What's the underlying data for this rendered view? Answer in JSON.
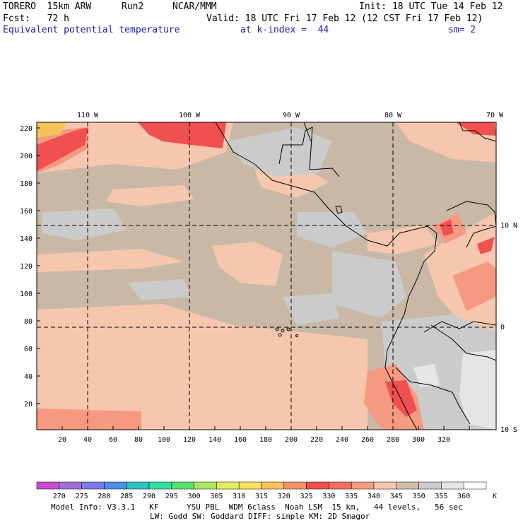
{
  "header": {
    "model": "TORERO  15km ARW",
    "run": "Run2",
    "center": "NCAR/MMM",
    "init": "Init: 18 UTC Tue 14 Feb 12",
    "fcst": "Fcst:   72 h",
    "valid": "Valid: 18 UTC Fri 17 Feb 12 (12 CST Fri 17 Feb 12)",
    "field": "Equivalent potential temperature",
    "level": "at k-index =  44",
    "smoothing": "sm= 2"
  },
  "map": {
    "lon_labels": [
      "110 W",
      "100 W",
      "90 W",
      "80 W",
      "70 W"
    ],
    "lat_labels": [
      "10 N",
      "0",
      "10 S"
    ],
    "y_ticks": [
      "220",
      "200",
      "180",
      "160",
      "140",
      "120",
      "100",
      "80",
      "60",
      "40",
      "20"
    ],
    "x_ticks": [
      "20",
      "40",
      "60",
      "80",
      "100",
      "120",
      "140",
      "160",
      "180",
      "200",
      "220",
      "240",
      "260",
      "280",
      "300",
      "320"
    ],
    "background_color": "#c9b8a6",
    "colors": {
      "shade_330": "#f05050",
      "shade_335": "#f58a70",
      "shade_340": "#f6c7ae",
      "shade_345": "#d2bea9",
      "shade_350": "#cbcbcb",
      "shade_355": "#e6e6e6",
      "shade_325_320": "#f8c25a",
      "coast": "#000000"
    }
  },
  "colorbar": {
    "labels": [
      "270",
      "275",
      "280",
      "285",
      "290",
      "295",
      "300",
      "305",
      "310",
      "315",
      "320",
      "325",
      "330",
      "335",
      "340",
      "345",
      "350",
      "355",
      "360"
    ],
    "unit": "K",
    "colors": [
      "#c84ccc",
      "#a070d8",
      "#7a7ae8",
      "#4a8ee6",
      "#2cc4c4",
      "#30e0a0",
      "#5ae070",
      "#a8e860",
      "#e4ec60",
      "#f8e060",
      "#f8c25a",
      "#f59268",
      "#f05050",
      "#f07060",
      "#f59a80",
      "#f6c7ae",
      "#d2bea9",
      "#cbcbcb",
      "#e6e6e6",
      "#ffffff"
    ]
  },
  "footer": {
    "line1": "Model Info: V3.3.1   KF      YSU PBL  WDM 6class  Noah LSM  15 km,   44 levels,   56 sec",
    "line2": "LW: Godd SW: Goddard DIFF: simple KM: 2D Smagor"
  }
}
